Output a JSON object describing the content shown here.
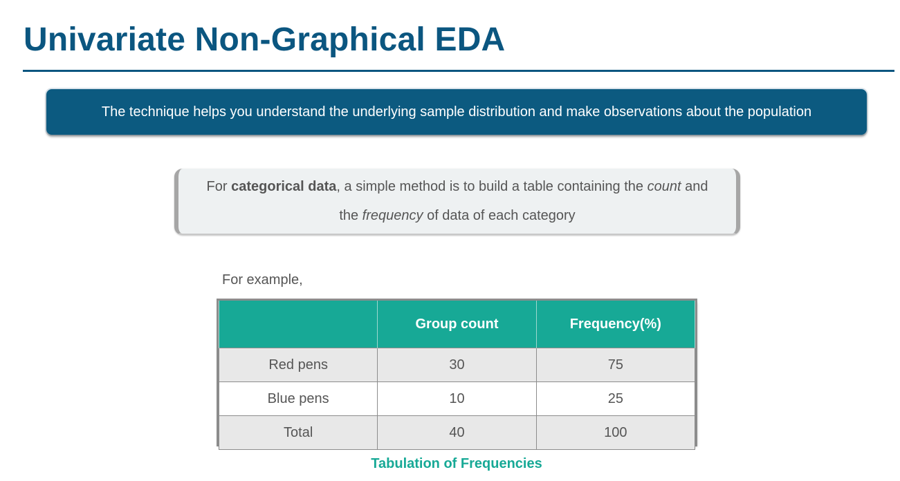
{
  "title": "Univariate Non-Graphical EDA",
  "banner": "The technique helps you understand the underlying sample distribution and make observations about the population",
  "callout": {
    "line1_pre": "For ",
    "line1_bold": "categorical data",
    "line1_mid": ", a simple method is to build a table containing the ",
    "line1_italic": "count",
    "line1_post": " and",
    "line2_pre": "the ",
    "line2_italic": "frequency",
    "line2_post": " of data of each category"
  },
  "example_label": "For example,",
  "table": {
    "headers": [
      "",
      "Group count",
      "Frequency(%)"
    ],
    "rows": [
      [
        "Red pens",
        "30",
        "75"
      ],
      [
        "Blue pens",
        "10",
        "25"
      ],
      [
        "Total",
        "40",
        "100"
      ]
    ]
  },
  "caption": "Tabulation of Frequencies",
  "colors": {
    "title": "#0b5680",
    "banner_bg": "#0c5a80",
    "table_header": "#17a996",
    "caption": "#17a996"
  }
}
